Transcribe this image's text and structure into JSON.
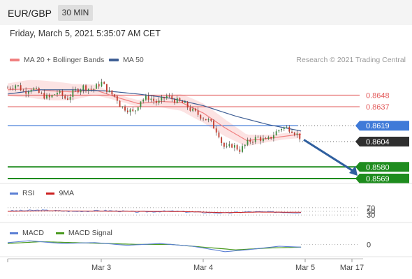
{
  "header": {
    "pair": "EUR/GBP",
    "timeframe": "30 MIN"
  },
  "datetime": "Friday, March 5, 2021 5:35:07 AM CET",
  "legend": {
    "ma_bb": "MA 20 + Bollinger Bands",
    "ma50": "MA 50",
    "credit": "Research © 2021 Trading Central"
  },
  "colors": {
    "ma20": "#f08080",
    "ma50": "#3f5f95",
    "bull": "#3c8c3c",
    "bear": "#c0392b",
    "support": "#1e8c1e",
    "resistance": "#e25a5a",
    "pivot": "#3f7ad8",
    "current": "#2f2f2f",
    "rsi": "#5b7fd4",
    "rsi_ma": "#cc1f1f",
    "macd": "#5b7fd4",
    "macd_signal": "#4a9a1f",
    "arrow": "#2f5f9f"
  },
  "levels": [
    {
      "label": "0.8648",
      "value": 0.8648,
      "kind": "resistance"
    },
    {
      "label": "0.8637",
      "value": 0.8637,
      "kind": "resistance"
    },
    {
      "label": "0.8619",
      "value": 0.8619,
      "kind": "pivot"
    },
    {
      "label": "0.8604",
      "value": 0.8604,
      "kind": "current"
    },
    {
      "label": "0.8580",
      "value": 0.858,
      "kind": "support"
    },
    {
      "label": "0.8569",
      "value": 0.8569,
      "kind": "support"
    }
  ],
  "x_ticks": [
    "Mar 3",
    "Mar 4",
    "Mar 5",
    "Mar 17"
  ],
  "rsi": {
    "label": "RSI",
    "ma_label": "9MA",
    "ticks": [
      "70",
      "50",
      "30"
    ]
  },
  "macd": {
    "label": "MACD",
    "signal_label": "MACD Signal",
    "ticks": [
      "0"
    ]
  },
  "chart_data": {
    "type": "candlestick",
    "title": "EUR/GBP 30 MIN",
    "ylim": [
      0.8565,
      0.867
    ],
    "price_path": [
      [
        0,
        0.8655
      ],
      [
        8,
        0.8658
      ],
      [
        15,
        0.8651
      ],
      [
        22,
        0.8655
      ],
      [
        30,
        0.8649
      ],
      [
        38,
        0.8645
      ],
      [
        46,
        0.8651
      ],
      [
        54,
        0.8644
      ],
      [
        62,
        0.8652
      ],
      [
        70,
        0.8656
      ],
      [
        78,
        0.8653
      ],
      [
        86,
        0.866
      ],
      [
        94,
        0.865
      ],
      [
        100,
        0.8646
      ],
      [
        104,
        0.8637
      ],
      [
        110,
        0.8635
      ],
      [
        116,
        0.8631
      ],
      [
        122,
        0.8643
      ],
      [
        130,
        0.8646
      ],
      [
        138,
        0.864
      ],
      [
        146,
        0.8647
      ],
      [
        154,
        0.8643
      ],
      [
        162,
        0.864
      ],
      [
        170,
        0.8633
      ],
      [
        178,
        0.8628
      ],
      [
        186,
        0.8623
      ],
      [
        194,
        0.8612
      ],
      [
        198,
        0.86
      ],
      [
        202,
        0.8597
      ],
      [
        206,
        0.8601
      ],
      [
        214,
        0.8596
      ],
      [
        222,
        0.8604
      ],
      [
        230,
        0.8608
      ],
      [
        238,
        0.8604
      ],
      [
        246,
        0.8612
      ],
      [
        252,
        0.8617
      ],
      [
        258,
        0.8617
      ],
      [
        262,
        0.8615
      ],
      [
        266,
        0.8611
      ],
      [
        270,
        0.8607
      ]
    ],
    "ma20_path": [
      [
        0,
        0.8653
      ],
      [
        20,
        0.8654
      ],
      [
        40,
        0.8652
      ],
      [
        60,
        0.8651
      ],
      [
        80,
        0.8653
      ],
      [
        100,
        0.8646
      ],
      [
        120,
        0.864
      ],
      [
        140,
        0.8642
      ],
      [
        160,
        0.8641
      ],
      [
        180,
        0.8631
      ],
      [
        200,
        0.8617
      ],
      [
        220,
        0.8605
      ],
      [
        240,
        0.8607
      ],
      [
        270,
        0.8611
      ]
    ],
    "ma50_path": [
      [
        0,
        0.8649
      ],
      [
        30,
        0.8653
      ],
      [
        60,
        0.8653
      ],
      [
        90,
        0.8652
      ],
      [
        120,
        0.8649
      ],
      [
        150,
        0.8645
      ],
      [
        180,
        0.8638
      ],
      [
        210,
        0.8628
      ],
      [
        240,
        0.862
      ],
      [
        270,
        0.8614
      ]
    ],
    "bb_width": 0.0006,
    "forecast_target": 0.8569,
    "rsi_ylim": [
      0,
      100
    ],
    "rsi_path": [
      [
        0,
        52
      ],
      [
        30,
        56
      ],
      [
        60,
        50
      ],
      [
        90,
        54
      ],
      [
        120,
        47
      ],
      [
        150,
        51
      ],
      [
        180,
        44
      ],
      [
        200,
        40
      ],
      [
        220,
        47
      ],
      [
        250,
        46
      ],
      [
        270,
        43
      ]
    ],
    "rsi_ma_path": [
      [
        0,
        50
      ],
      [
        40,
        53
      ],
      [
        80,
        51
      ],
      [
        120,
        50
      ],
      [
        160,
        49
      ],
      [
        200,
        43
      ],
      [
        230,
        46
      ],
      [
        270,
        45
      ]
    ],
    "macd_path": [
      [
        0,
        0.0002
      ],
      [
        20,
        0.0004
      ],
      [
        50,
        0.0001
      ],
      [
        80,
        0.0002
      ],
      [
        110,
        -0.0001
      ],
      [
        140,
        0.0001
      ],
      [
        170,
        -0.0002
      ],
      [
        200,
        -0.0008
      ],
      [
        220,
        -0.0006
      ],
      [
        250,
        -0.0002
      ],
      [
        270,
        -0.0003
      ]
    ],
    "macd_signal_path": [
      [
        0,
        0.0001
      ],
      [
        30,
        0.0003
      ],
      [
        60,
        0.0002
      ],
      [
        90,
        0.0001
      ],
      [
        120,
        0.0
      ],
      [
        150,
        0.0
      ],
      [
        180,
        -0.0003
      ],
      [
        210,
        -0.0006
      ],
      [
        240,
        -0.0004
      ],
      [
        270,
        -0.0003
      ]
    ],
    "macd_ylim": [
      -0.0012,
      0.0008
    ]
  }
}
